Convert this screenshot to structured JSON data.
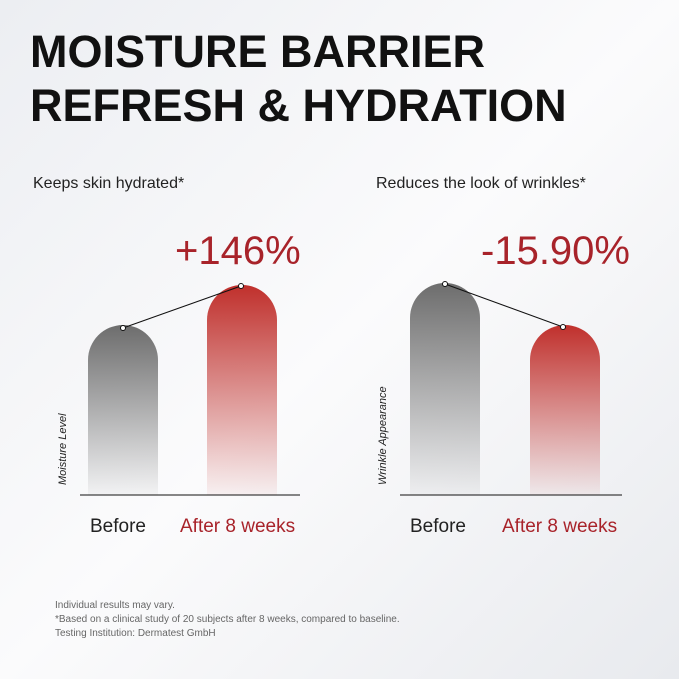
{
  "header": {
    "title_lines": [
      "MOISTURE BARRIER",
      "REFRESH & HYDRATION"
    ]
  },
  "panels": [
    {
      "subtitle": "Keeps skin hydrated*",
      "change": "+146%",
      "axis_label": "Moisture Level",
      "categories": [
        "Before",
        "After 8 weeks"
      ]
    },
    {
      "subtitle": "Reduces the look of wrinkles*",
      "change": "-15.90%",
      "axis_label": "Wrinkle Appearance",
      "categories": [
        "Before",
        "After 8 weeks"
      ]
    }
  ],
  "footnotes": [
    "Individual results may vary.",
    "*Based on a clinical study of 20 subjects after 8 weeks, compared to baseline.",
    "Testing Institution: Dermatest GmbH"
  ]
}
